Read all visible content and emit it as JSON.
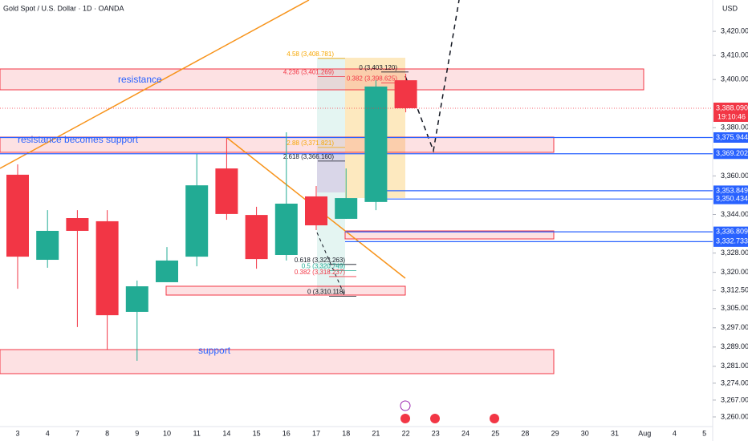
{
  "chart_data": {
    "type": "candlestick",
    "title": "Gold Spot / U.S. Dollar · 1D · OANDA",
    "currency": "USD",
    "categories": [
      "3",
      "4",
      "7",
      "8",
      "9",
      "10",
      "11",
      "14",
      "15",
      "16",
      "17",
      "18",
      "21",
      "22",
      "23",
      "24",
      "25",
      "28",
      "29",
      "30",
      "31",
      "Aug",
      "4",
      "5"
    ],
    "open": [
      3360.5,
      3325.2,
      3342.5,
      3341.2,
      3303.6,
      3315.9,
      3326.5,
      3363.1,
      3343.8,
      3327.2,
      3351.5,
      3342.2,
      3349.2,
      3399.7,
      null,
      null,
      null,
      null,
      null,
      null,
      null,
      null,
      null,
      null
    ],
    "high": [
      3364.8,
      3345.8,
      3345.8,
      3345.8,
      3316.6,
      3330.5,
      3369.1,
      3375.8,
      3347.2,
      3378.1,
      3355.8,
      3363.1,
      3399.7,
      3402.4,
      null,
      null,
      null,
      null,
      null,
      null,
      null,
      null,
      null,
      null
    ],
    "low": [
      3313.2,
      3321.9,
      3297.3,
      3287.9,
      3283.3,
      3315.9,
      3322.5,
      3341.8,
      3321.5,
      3324.9,
      3337.5,
      3342.2,
      3345.8,
      3386.4,
      null,
      null,
      null,
      null,
      null,
      null,
      null,
      null,
      null,
      null
    ],
    "close": [
      3326.5,
      3337.2,
      3337.2,
      3302.2,
      3314.2,
      3324.9,
      3356.1,
      3344.2,
      3325.5,
      3348.5,
      3339.5,
      3350.8,
      3397.1,
      3388.09,
      null,
      null,
      null,
      null,
      null,
      null,
      null,
      null,
      null,
      null
    ],
    "up_color": "#22ab94",
    "down_color": "#f23645",
    "ylim": [
      3256,
      3433
    ],
    "yticks": [
      {
        "value": 3420,
        "label": "3,420.000"
      },
      {
        "value": 3410,
        "label": "3,410.000"
      },
      {
        "value": 3400,
        "label": "3,400.000"
      },
      {
        "value": 3380,
        "label": "3,380.000"
      },
      {
        "value": 3360,
        "label": "3,360.000"
      },
      {
        "value": 3344,
        "label": "3,344.000"
      },
      {
        "value": 3328,
        "label": "3,328.000"
      },
      {
        "value": 3320,
        "label": "3,320.000"
      },
      {
        "value": 3312.5,
        "label": "3,312.500"
      },
      {
        "value": 3305,
        "label": "3,305.000"
      },
      {
        "value": 3297,
        "label": "3,297.000"
      },
      {
        "value": 3289,
        "label": "3,289.000"
      },
      {
        "value": 3281,
        "label": "3,281.000"
      },
      {
        "value": 3274,
        "label": "3,274.000"
      },
      {
        "value": 3267,
        "label": "3,267.000"
      },
      {
        "value": 3260,
        "label": "3,260.000"
      }
    ],
    "grid": false,
    "last_price": {
      "value": 3388.09,
      "label": "3,388.090",
      "countdown": "19:10:46",
      "color": "#f23645"
    },
    "price_lines": [
      {
        "value": 3375.944,
        "label": "3,375.944"
      },
      {
        "value": 3369.202,
        "label": "3,369.202"
      },
      {
        "value": 3353.849,
        "label": "3,353.849"
      },
      {
        "value": 3350.434,
        "label": "3,350.434"
      },
      {
        "value": 3336.809,
        "label": "3,336.809"
      },
      {
        "value": 3332.733,
        "label": "3,332.733"
      }
    ],
    "price_line_color": "#2962ff",
    "fib_levels": [
      {
        "label": "4.58 (3,408.781)",
        "value": 3408.781,
        "color": "#f7a600"
      },
      {
        "label": "4.236 (3,401.269)",
        "value": 3401.269,
        "color": "#f23645"
      },
      {
        "label": "0 (3,403.120)",
        "value": 3403.12,
        "color": "#131722"
      },
      {
        "label": "0.382 (3,398.625)",
        "value": 3398.625,
        "color": "#f23645"
      },
      {
        "label": "2.88 (3,371.821)",
        "value": 3371.821,
        "color": "#f7a600"
      },
      {
        "label": "2.618 (3,366.160)",
        "value": 3366.16,
        "color": "#131722"
      },
      {
        "label": "0.618 (3,323.263)",
        "value": 3323.263,
        "color": "#131722"
      },
      {
        "label": "0.5 (3,320.749)",
        "value": 3320.749,
        "color": "#22ab94"
      },
      {
        "label": "0.382 (3,318.237)",
        "value": 3318.237,
        "color": "#f23645"
      },
      {
        "label": "0 (3,310.118)",
        "value": 3310.118,
        "color": "#131722"
      }
    ],
    "annotations": [
      "resistance",
      "resistance becomes support",
      "support"
    ]
  }
}
